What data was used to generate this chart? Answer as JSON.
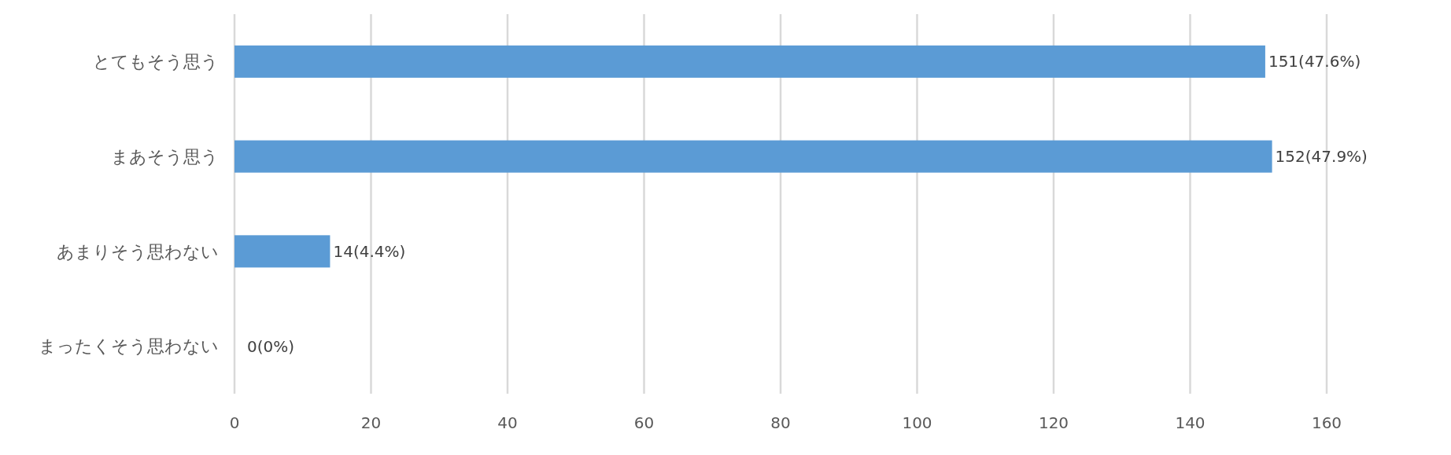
{
  "chart_data": {
    "type": "bar",
    "orientation": "horizontal",
    "categories": [
      "とてもそう思う",
      "まあそう思う",
      "あまりそう思わない",
      "まったくそう思わない"
    ],
    "values": [
      151,
      152,
      14,
      0
    ],
    "value_labels": [
      "151(47.6%)",
      "152(47.9%)",
      "14(4.4%)",
      "0(0%)"
    ],
    "color": "#5b9bd5",
    "xlim": [
      0,
      160
    ],
    "xticks": [
      0,
      20,
      40,
      60,
      80,
      100,
      120,
      140,
      160
    ],
    "grid": "x"
  }
}
